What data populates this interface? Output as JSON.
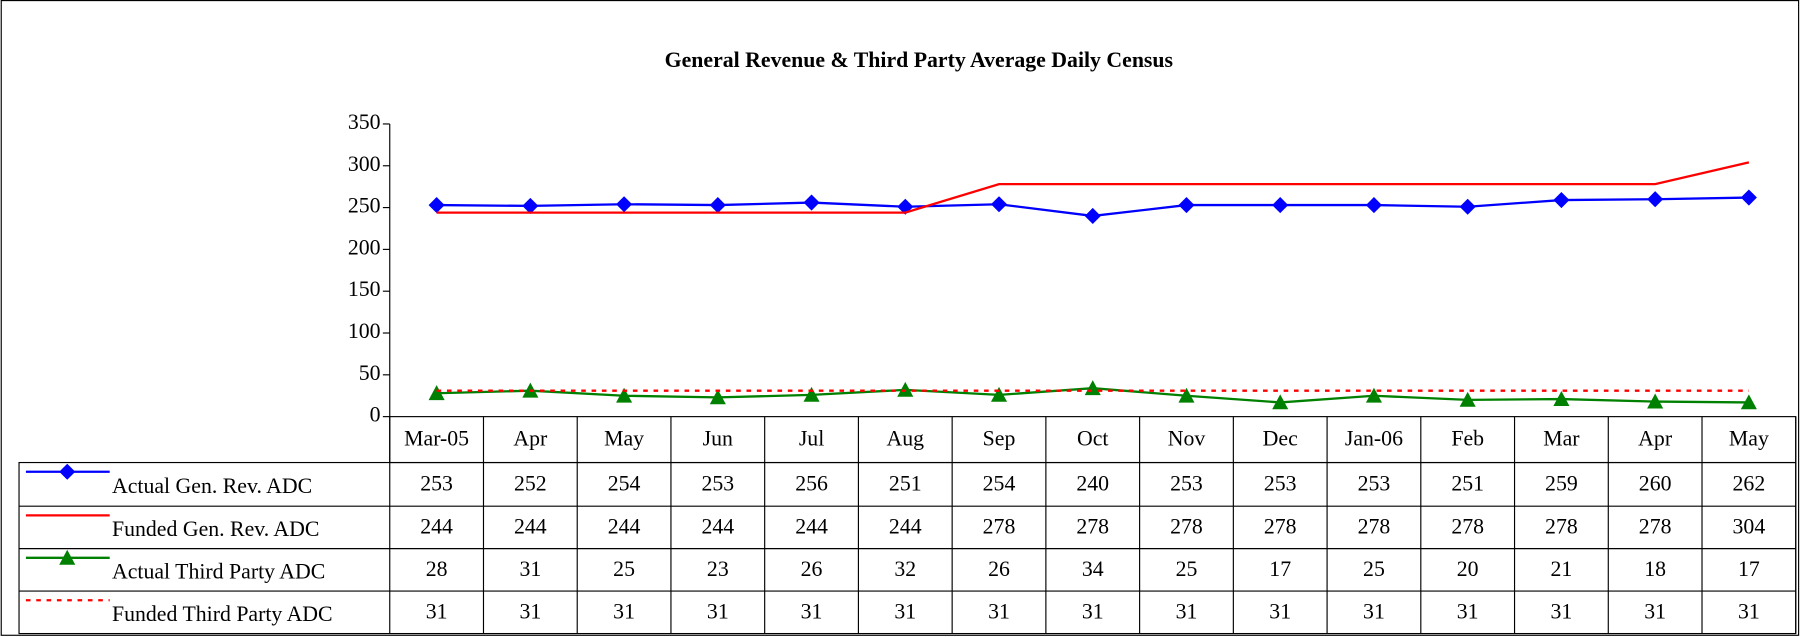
{
  "chart_data": {
    "type": "line",
    "title": "General Revenue & Third Party Average Daily Census",
    "categories": [
      "Mar-05",
      "Apr",
      "May",
      "Jun",
      "Jul",
      "Aug",
      "Sep",
      "Oct",
      "Nov",
      "Dec",
      "Jan-06",
      "Feb",
      "Mar",
      "Apr",
      "May"
    ],
    "series": [
      {
        "name": "Actual Gen. Rev. ADC",
        "color": "#0000ff",
        "marker": "diamond",
        "dashed": false,
        "values": [
          253,
          252,
          254,
          253,
          256,
          251,
          254,
          240,
          253,
          253,
          253,
          251,
          259,
          260,
          262
        ]
      },
      {
        "name": "Funded Gen. Rev. ADC",
        "color": "#ff0000",
        "marker": "none",
        "dashed": false,
        "values": [
          244,
          244,
          244,
          244,
          244,
          244,
          278,
          278,
          278,
          278,
          278,
          278,
          278,
          278,
          304
        ]
      },
      {
        "name": "Actual Third Party ADC",
        "color": "#008000",
        "marker": "triangle",
        "dashed": false,
        "values": [
          28,
          31,
          25,
          23,
          26,
          32,
          26,
          34,
          25,
          17,
          25,
          20,
          21,
          18,
          17
        ]
      },
      {
        "name": "Funded Third Party ADC",
        "color": "#ff0000",
        "marker": "none",
        "dashed": true,
        "values": [
          31,
          31,
          31,
          31,
          31,
          31,
          31,
          31,
          31,
          31,
          31,
          31,
          31,
          31,
          31
        ]
      }
    ],
    "ylim": [
      0,
      350
    ],
    "yticks": [
      0,
      50,
      100,
      150,
      200,
      250,
      300,
      350
    ],
    "grid": false
  }
}
